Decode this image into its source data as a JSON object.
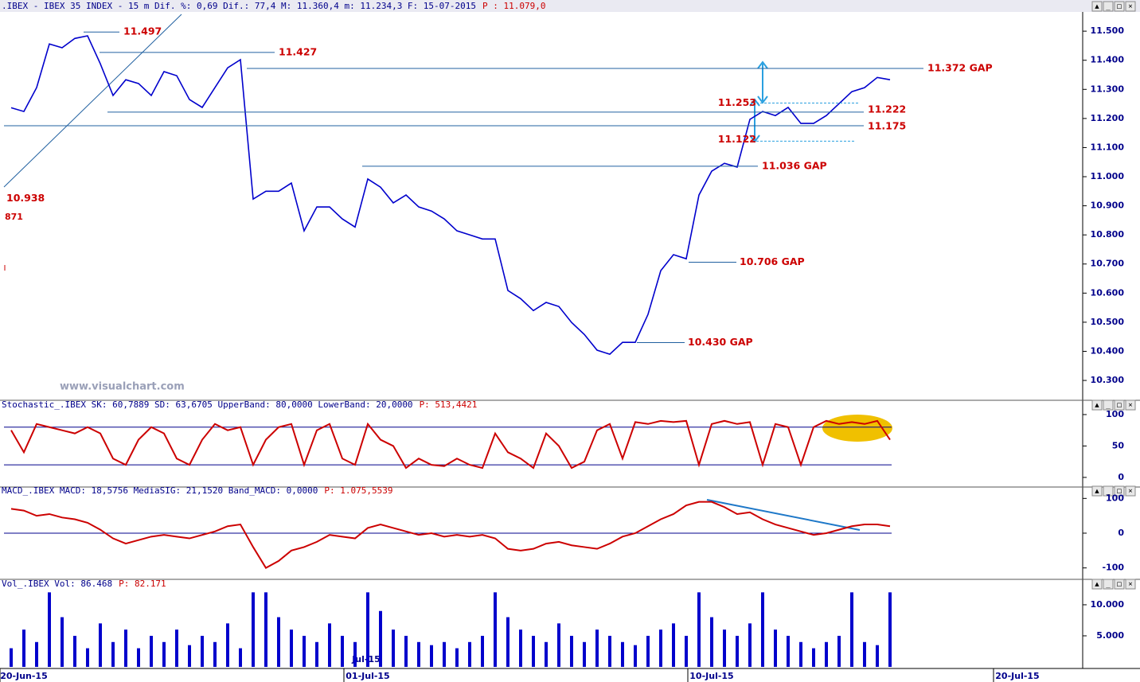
{
  "header": {
    "info": ".IBEX - IBEX 35 INDEX -   15 m Dif. %: 0,69 Dif.: 77,4 M: 11.360,4 m: 11.234,3 F: 15-07-2015",
    "price": "P : 11.079,0"
  },
  "watermark": "www.visualchart.com",
  "chart_data": [
    {
      "type": "line",
      "color": "#0000cc",
      "categories": [
        null,
        "20-Jun-15",
        null,
        null,
        null,
        null,
        null,
        null,
        null,
        null,
        null,
        null,
        null,
        null,
        null,
        null,
        null,
        null,
        null,
        null,
        null,
        null,
        null,
        null,
        null,
        null,
        null,
        null,
        "01-Jul-15",
        null,
        null,
        null,
        null,
        null,
        null,
        null,
        null,
        null,
        null,
        null,
        null,
        null,
        null,
        null,
        null,
        null,
        null,
        null,
        null,
        null,
        null,
        null,
        null,
        null,
        null,
        "10-Jul-15",
        null,
        null,
        null,
        null,
        null,
        null,
        null,
        null,
        null,
        null,
        null,
        null,
        null,
        null,
        null,
        null,
        null,
        null,
        null,
        null,
        null,
        null,
        null,
        "20-Jul-15"
      ],
      "values": [
        11237,
        11224,
        11306,
        11456,
        11443,
        11475,
        11484,
        11388,
        11279,
        11333,
        11320,
        11279,
        11361,
        11347,
        11265,
        11238,
        11306,
        11374,
        11402,
        10923,
        10950,
        10950,
        10978,
        10814,
        10896,
        10896,
        10855,
        10827,
        10992,
        10964,
        10910,
        10937,
        10896,
        10882,
        10855,
        10814,
        10800,
        10786,
        10786,
        10609,
        10581,
        10540,
        10568,
        10554,
        10499,
        10458,
        10404,
        10390,
        10431,
        10431,
        10527,
        10677,
        10732,
        10718,
        10937,
        11019,
        11046,
        11033,
        11197,
        11224,
        11210,
        11238,
        11183,
        11183,
        11210,
        11251,
        11292,
        11306,
        11341,
        11333,
        null,
        null,
        null,
        null,
        null,
        null,
        null,
        null,
        null,
        null
      ],
      "ylim": [
        10240,
        11566
      ],
      "yticks": [
        {
          "value": 11500,
          "label": "11.500"
        },
        {
          "value": 11400,
          "label": "11.400"
        },
        {
          "value": 11300,
          "label": "11.300"
        },
        {
          "value": 11200,
          "label": "11.200"
        },
        {
          "value": 11100,
          "label": "11.100"
        },
        {
          "value": 11000,
          "label": "11.000"
        },
        {
          "value": 10900,
          "label": "10.900"
        },
        {
          "value": 10800,
          "label": "10.800"
        },
        {
          "value": 10700,
          "label": "10.700"
        },
        {
          "value": 10600,
          "label": "10.600"
        },
        {
          "value": 10500,
          "label": "10.500"
        },
        {
          "value": 10400,
          "label": "10.400"
        },
        {
          "value": 10300,
          "label": "10.300"
        }
      ],
      "annotations": [
        {
          "value": 11497,
          "label": "11.497"
        },
        {
          "value": 11427,
          "label": "11.427"
        },
        {
          "value": 11372,
          "label": "11.372 GAP"
        },
        {
          "value": 11253,
          "label": "11.253"
        },
        {
          "value": 11222,
          "label": "11.222"
        },
        {
          "value": 11175,
          "label": "11.175"
        },
        {
          "value": 11122,
          "label": "11.122"
        },
        {
          "value": 11036,
          "label": "11.036 GAP"
        },
        {
          "value": 10706,
          "label": "10.706 GAP"
        },
        {
          "value": 10430,
          "label": "10.430 GAP"
        },
        {
          "value": 10938,
          "label": "10.938"
        }
      ],
      "note": "871",
      "month_label": "Jul-15"
    },
    {
      "type": "line",
      "title": "Stochastic_.IBEX SK: 60,7889 SD: 63,6705 UpperBand: 80,0000 LowerBand: 20,0000",
      "title_price": "P: 513,4421",
      "color": "#cc0000",
      "values": [
        75,
        40,
        85,
        80,
        75,
        70,
        80,
        70,
        30,
        20,
        60,
        80,
        70,
        30,
        20,
        60,
        85,
        75,
        80,
        20,
        60,
        80,
        85,
        20,
        75,
        85,
        30,
        20,
        85,
        60,
        50,
        15,
        30,
        20,
        18,
        30,
        20,
        15,
        70,
        40,
        30,
        15,
        70,
        50,
        15,
        25,
        75,
        85,
        30,
        88,
        85,
        90,
        88,
        90,
        20,
        85,
        90,
        85,
        88,
        20,
        85,
        80,
        20,
        80,
        90,
        85,
        88,
        85,
        90,
        60,
        null,
        null,
        null,
        null,
        null,
        null,
        null,
        null,
        null,
        null
      ],
      "ylim": [
        -9,
        105
      ],
      "yticks": [
        100,
        50,
        0
      ],
      "bands": [
        80,
        20
      ]
    },
    {
      "type": "line",
      "title": "MACD_.IBEX MACD: 18,5756 MediaSIG: 21,1520 Band_MACD: 0,0000",
      "title_price": "P: 1.075,5539",
      "color": "#cc0000",
      "values": [
        70,
        65,
        50,
        55,
        45,
        40,
        30,
        10,
        -15,
        -30,
        -20,
        -10,
        -5,
        -10,
        -15,
        -5,
        5,
        20,
        25,
        -40,
        -100,
        -80,
        -50,
        -40,
        -25,
        -5,
        -10,
        -15,
        15,
        25,
        15,
        5,
        -5,
        0,
        -10,
        -5,
        -10,
        -5,
        -15,
        -45,
        -50,
        -45,
        -30,
        -25,
        -35,
        -40,
        -45,
        -30,
        -10,
        0,
        20,
        40,
        55,
        80,
        90,
        90,
        75,
        55,
        60,
        40,
        25,
        15,
        5,
        -5,
        0,
        10,
        20,
        25,
        25,
        20,
        null,
        null,
        null,
        null,
        null,
        null,
        null,
        null,
        null,
        null
      ],
      "ylim": [
        -126,
        103
      ],
      "yticks": [
        100,
        0,
        -100
      ],
      "bands": [
        0
      ]
    },
    {
      "type": "bar",
      "title": "Vol_.IBEX Vol: 86.468",
      "title_price": "P: 82.171",
      "color": "#0000cc",
      "values": [
        3000,
        6000,
        4000,
        12000,
        8000,
        5000,
        3000,
        7000,
        4000,
        6000,
        3000,
        5000,
        4000,
        6000,
        3500,
        5000,
        4000,
        7000,
        3000,
        12000,
        12000,
        8000,
        6000,
        5000,
        4000,
        7000,
        5000,
        4000,
        12000,
        9000,
        6000,
        5000,
        4000,
        3500,
        4000,
        3000,
        4000,
        5000,
        12000,
        8000,
        6000,
        5000,
        4000,
        7000,
        5000,
        4000,
        6000,
        5000,
        4000,
        3500,
        5000,
        6000,
        7000,
        5000,
        12000,
        8000,
        6000,
        5000,
        7000,
        12000,
        6000,
        5000,
        4000,
        3000,
        4000,
        5000,
        12000,
        4000,
        3500,
        12000,
        null,
        null,
        null,
        null,
        null,
        null,
        null,
        null,
        null,
        null
      ],
      "ylim": [
        0,
        12300
      ],
      "yticks": [
        {
          "value": 10000,
          "label": "10.000"
        },
        {
          "value": 5000,
          "label": "5.000"
        }
      ]
    }
  ]
}
